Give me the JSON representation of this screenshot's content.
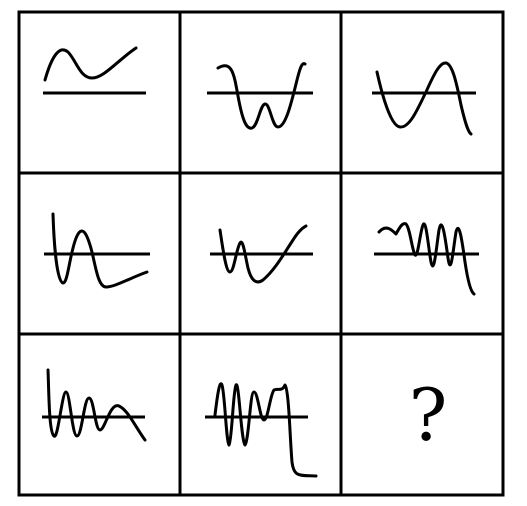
{
  "puzzle": {
    "rows": 3,
    "columns": 3,
    "missing_cell": "?",
    "cells": [
      {
        "row": 1,
        "col": 1,
        "icon": "curve-above-line-icon"
      },
      {
        "row": 1,
        "col": 2,
        "icon": "w-curve-crossing-line-icon"
      },
      {
        "row": 1,
        "col": 3,
        "icon": "wave-crossing-line-icon"
      },
      {
        "row": 2,
        "col": 1,
        "icon": "damped-wave-crossing-line-icon"
      },
      {
        "row": 2,
        "col": 2,
        "icon": "w-curve-rising-icon"
      },
      {
        "row": 2,
        "col": 3,
        "icon": "squiggle-crossing-line-icon"
      },
      {
        "row": 3,
        "col": 1,
        "icon": "zigzag-wave-crossing-line-icon"
      },
      {
        "row": 3,
        "col": 2,
        "icon": "m-wave-with-tail-icon"
      },
      {
        "row": 3,
        "col": 3,
        "icon": "question-mark-icon"
      }
    ]
  }
}
